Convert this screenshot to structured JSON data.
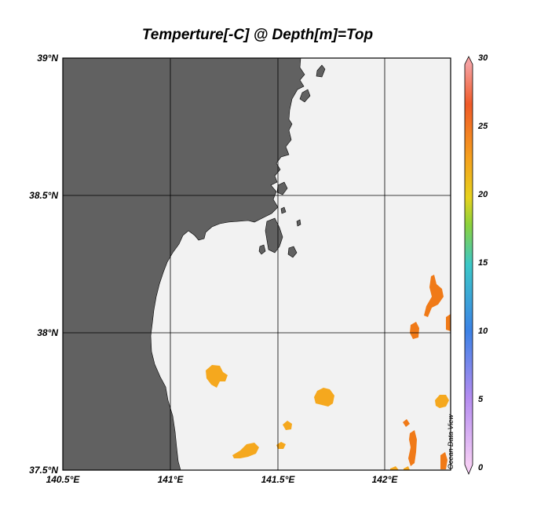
{
  "title": "Temperture[-C] @ Depth[m]=Top",
  "credit": "Ocean Data View",
  "latitude_labels": [
    "39°N",
    "38.5°N",
    "38°N",
    "37.5°N"
  ],
  "longitude_labels": [
    "140.5°E",
    "141°E",
    "141.5°E",
    "142°E"
  ],
  "colorbar_labels": [
    "30",
    "25",
    "20",
    "15",
    "10",
    "5",
    "0"
  ],
  "colors": {
    "land": "#616161",
    "ocean": "#f2f2f2",
    "orange_patch": "#f07a18",
    "amber_patch": "#f5a81e"
  },
  "chart_data": {
    "type": "heatmap",
    "title": "Temperture[-C] @ Depth[m]=Top",
    "x_axis_ticks": [
      "140.5°E",
      "141°E",
      "141.5°E",
      "142°E"
    ],
    "y_axis_ticks": [
      "39°N",
      "38.5°N",
      "38°N",
      "37.5°N"
    ],
    "lon_range": [
      140.5,
      142.3
    ],
    "lat_range": [
      37.5,
      39.0
    ],
    "grid": true,
    "colorbar": {
      "min": 0,
      "max": 30,
      "ticks": [
        0,
        5,
        10,
        15,
        20,
        25,
        30
      ],
      "colors": [
        {
          "value": 0,
          "color": "#f5cdf5"
        },
        {
          "value": 5,
          "color": "#b48cf0"
        },
        {
          "value": 10,
          "color": "#3c82e6"
        },
        {
          "value": 15,
          "color": "#3cc8c8"
        },
        {
          "value": 18,
          "color": "#8cd23c"
        },
        {
          "value": 20,
          "color": "#e6d21e"
        },
        {
          "value": 23,
          "color": "#f5a01e"
        },
        {
          "value": 27,
          "color": "#f05a28"
        },
        {
          "value": 30,
          "color": "#f5a0a0"
        }
      ]
    },
    "patches": [
      {
        "lon": 142.23,
        "lat": 38.17,
        "temp": 25
      },
      {
        "lon": 142.14,
        "lat": 38.04,
        "temp": 25
      },
      {
        "lon": 142.27,
        "lat": 38.04,
        "temp": 26
      },
      {
        "lon": 141.2,
        "lat": 37.85,
        "temp": 22
      },
      {
        "lon": 141.71,
        "lat": 37.77,
        "temp": 22
      },
      {
        "lon": 142.25,
        "lat": 37.75,
        "temp": 22
      },
      {
        "lon": 141.55,
        "lat": 37.67,
        "temp": 22
      },
      {
        "lon": 141.51,
        "lat": 37.59,
        "temp": 22
      },
      {
        "lon": 141.34,
        "lat": 37.58,
        "temp": 22
      },
      {
        "lon": 142.12,
        "lat": 37.59,
        "temp": 25
      },
      {
        "lon": 142.27,
        "lat": 37.53,
        "temp": 24
      },
      {
        "lon": 142.05,
        "lat": 37.5,
        "temp": 24
      }
    ]
  }
}
